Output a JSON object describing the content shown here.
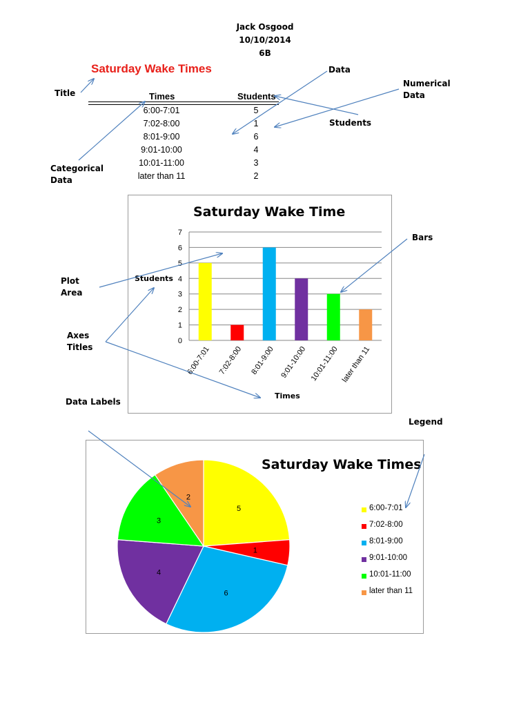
{
  "header": {
    "name": "Jack Osgood",
    "date": "10/10/2014",
    "class": "6B"
  },
  "document_title": "Saturday Wake Times",
  "table": {
    "headers": [
      "Times",
      "Students"
    ],
    "rows": [
      [
        "6:00-7:01",
        "5"
      ],
      [
        "7:02-8:00",
        "1"
      ],
      [
        "8:01-9:00",
        "6"
      ],
      [
        "9:01-10:00",
        "4"
      ],
      [
        "10:01-11:00",
        "3"
      ],
      [
        "later than 11",
        "2"
      ]
    ]
  },
  "annotations": {
    "title": "Title",
    "data": "Data",
    "numerical_data": [
      "Numerical",
      "Data"
    ],
    "students": "Students",
    "categorical_data": [
      "Categorical",
      "Data"
    ],
    "bars": "Bars",
    "plot_area": [
      "Plot",
      "Area"
    ],
    "axes_titles": [
      "Axes",
      "Titles"
    ],
    "data_labels": "Data Labels",
    "legend": "Legend"
  },
  "colors": [
    "#ffff00",
    "#ff0000",
    "#00b0f0",
    "#7030a0",
    "#00ff00",
    "#f79646"
  ],
  "chart_data": [
    {
      "type": "bar",
      "title": "Saturday Wake Time",
      "xlabel": "Times",
      "ylabel": "Students",
      "categories": [
        "6:00-7:01",
        "7:02-8:00",
        "8:01-9:00",
        "9:01-10:00",
        "10:01-11:00",
        "later than 11"
      ],
      "values": [
        5,
        1,
        6,
        4,
        3,
        2
      ],
      "ylim": [
        0,
        7
      ],
      "yticks": [
        "0",
        "1",
        "2",
        "3",
        "4",
        "5",
        "6",
        "7"
      ],
      "grid": true,
      "legend": "none"
    },
    {
      "type": "pie",
      "title": "Saturday Wake Times",
      "categories": [
        "6:00-7:01",
        "7:02-8:00",
        "8:01-9:00",
        "9:01-10:00",
        "10:01-11:00",
        "later than 11"
      ],
      "values": [
        5,
        1,
        6,
        4,
        3,
        2
      ],
      "data_labels": [
        "5",
        "1",
        "6",
        "4",
        "3",
        "2"
      ],
      "legend": "right"
    }
  ]
}
